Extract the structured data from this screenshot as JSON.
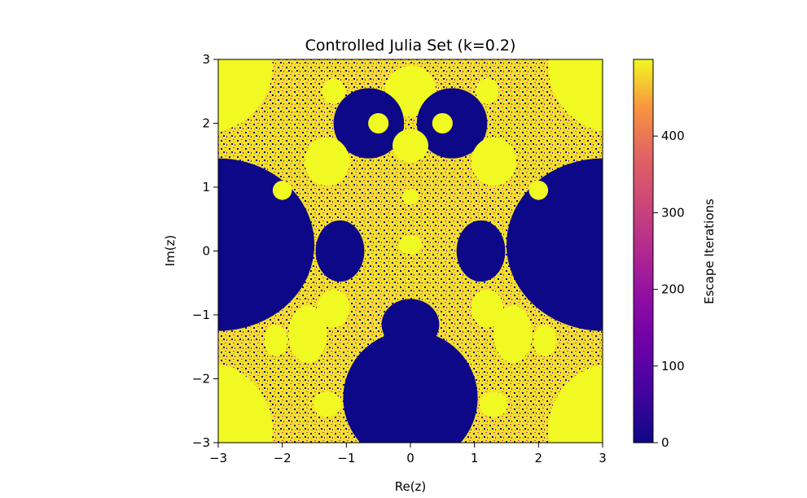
{
  "chart_data": {
    "type": "heatmap",
    "title": "Controlled Julia Set (k=0.2)",
    "xlabel": "Re(z)",
    "ylabel": "Im(z)",
    "xlim": [
      -3,
      3
    ],
    "ylim": [
      -3,
      3
    ],
    "x_ticks": [
      -3,
      -2,
      -1,
      0,
      1,
      2,
      3
    ],
    "y_ticks": [
      -3,
      -2,
      -1,
      0,
      1,
      2,
      3
    ],
    "x_tick_labels": [
      "−3",
      "−2",
      "−1",
      "0",
      "1",
      "2",
      "3"
    ],
    "y_tick_labels": [
      "−3",
      "−2",
      "−1",
      "0",
      "1",
      "2",
      "3"
    ],
    "colorbar": {
      "label": "Escape Iterations",
      "range": [
        0,
        500
      ],
      "ticks": [
        0,
        100,
        200,
        300,
        400
      ],
      "tick_labels": [
        "0",
        "100",
        "200",
        "300",
        "400"
      ],
      "colormap": "plasma"
    },
    "grid": false
  }
}
